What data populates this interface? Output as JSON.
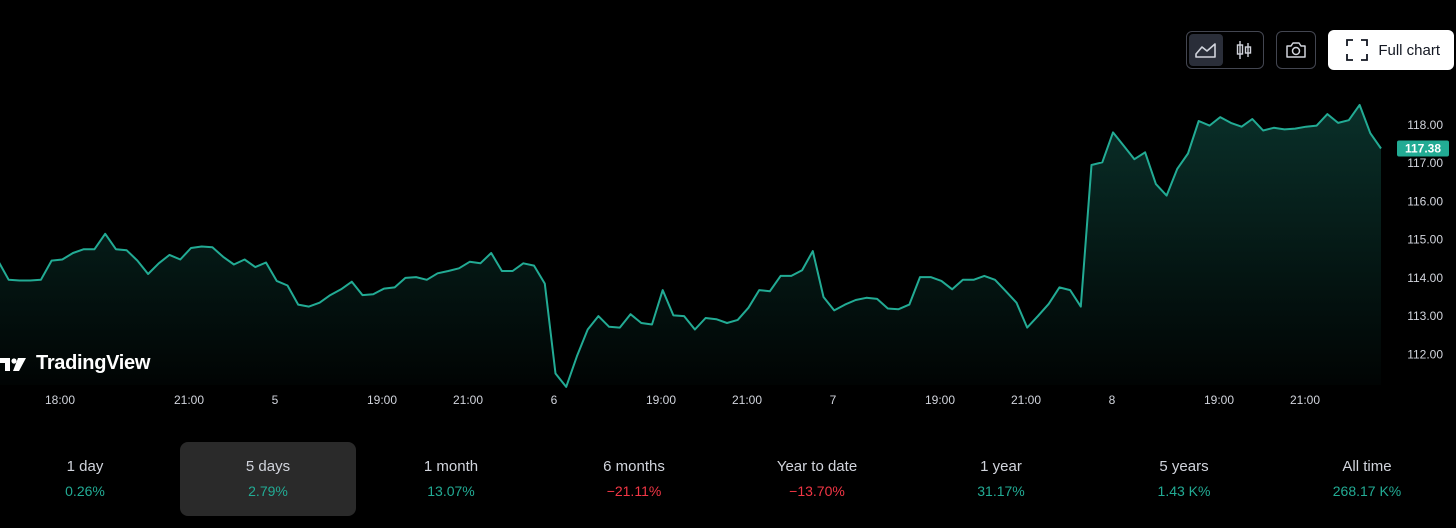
{
  "toolbar": {
    "line_icon": "line-chart-icon",
    "candle_icon": "candlestick-icon",
    "camera_icon": "camera-icon",
    "fullscreen_icon": "fullscreen-icon",
    "full_chart_label": "Full chart"
  },
  "logo": {
    "text": "TradingView",
    "icon": "tradingview-logo-icon"
  },
  "colors": {
    "line": "#22ab94",
    "positive": "#22ab94",
    "negative": "#f23645",
    "price_badge": "#22ab94",
    "background": "#000000"
  },
  "chart_data": {
    "type": "area",
    "y_ticks": [
      "118.00",
      "117.00",
      "116.00",
      "115.00",
      "114.00",
      "113.00",
      "112.00"
    ],
    "ylim": [
      111.2,
      118.7
    ],
    "x_ticks": [
      "18:00",
      "21:00",
      "5",
      "19:00",
      "21:00",
      "6",
      "19:00",
      "21:00",
      "7",
      "19:00",
      "21:00",
      "8",
      "19:00",
      "21:00"
    ],
    "last_price": "117.38",
    "grid": false,
    "values": [
      114.45,
      113.95,
      113.93,
      113.93,
      113.95,
      114.45,
      114.48,
      114.65,
      114.75,
      114.75,
      115.15,
      114.75,
      114.72,
      114.45,
      114.1,
      114.38,
      114.6,
      114.48,
      114.78,
      114.82,
      114.8,
      114.55,
      114.35,
      114.48,
      114.28,
      114.4,
      113.92,
      113.8,
      113.3,
      113.25,
      113.35,
      113.55,
      113.7,
      113.9,
      113.55,
      113.57,
      113.72,
      113.75,
      114.0,
      114.02,
      113.95,
      114.12,
      114.18,
      114.25,
      114.42,
      114.38,
      114.65,
      114.18,
      114.18,
      114.38,
      114.32,
      113.85,
      111.5,
      111.15,
      111.95,
      112.65,
      113.0,
      112.72,
      112.7,
      113.05,
      112.82,
      112.78,
      113.68,
      113.02,
      113.0,
      112.65,
      112.95,
      112.92,
      112.82,
      112.9,
      113.22,
      113.68,
      113.65,
      114.05,
      114.05,
      114.2,
      114.7,
      113.5,
      113.15,
      113.3,
      113.42,
      113.48,
      113.45,
      113.2,
      113.18,
      113.3,
      114.02,
      114.02,
      113.92,
      113.7,
      113.95,
      113.95,
      114.05,
      113.95,
      113.65,
      113.35,
      112.7,
      113.0,
      113.32,
      113.75,
      113.68,
      113.25,
      116.95,
      117.02,
      117.8,
      117.45,
      117.1,
      117.28,
      116.45,
      116.15,
      116.85,
      117.25,
      118.1,
      117.98,
      118.2,
      118.05,
      117.95,
      118.15,
      117.85,
      117.92,
      117.88,
      117.9,
      117.95,
      117.98,
      118.28,
      118.05,
      118.12,
      118.52,
      117.78,
      117.38
    ]
  },
  "periods": [
    {
      "label": "1 day",
      "value": "0.26%",
      "tone": "pos"
    },
    {
      "label": "5 days",
      "value": "2.79%",
      "tone": "pos",
      "active": true
    },
    {
      "label": "1 month",
      "value": "13.07%",
      "tone": "pos"
    },
    {
      "label": "6 months",
      "value": "−21.11%",
      "tone": "neg"
    },
    {
      "label": "Year to date",
      "value": "−13.70%",
      "tone": "neg"
    },
    {
      "label": "1 year",
      "value": "31.17%",
      "tone": "pos"
    },
    {
      "label": "5 years",
      "value": "1.43 K%",
      "tone": "pos"
    },
    {
      "label": "All time",
      "value": "268.17 K%",
      "tone": "pos"
    }
  ]
}
